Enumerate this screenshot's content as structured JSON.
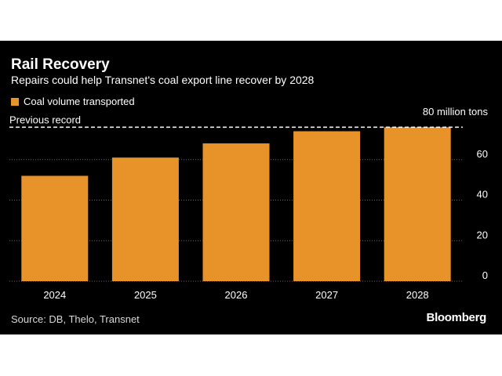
{
  "title": "Rail Recovery",
  "subtitle": "Repairs could help Transnet's coal export line recover by 2028",
  "source": "Source: DB, Thelo, Transnet",
  "brand": "Bloomberg",
  "colors": {
    "bar": "#E8922A",
    "background": "#000000",
    "text": "#ffffff",
    "grid": "#666666"
  },
  "chart_data": {
    "type": "bar",
    "categories": [
      "2024",
      "2025",
      "2026",
      "2027",
      "2028"
    ],
    "series": [
      {
        "name": "Coal volume transported",
        "values": [
          52,
          61,
          68,
          74,
          76
        ]
      }
    ],
    "ylim": [
      0,
      80
    ],
    "yticks": [
      0,
      20,
      40,
      60
    ],
    "top_label": "80 million tons",
    "reference_line": {
      "label": "Previous record",
      "value": 76
    },
    "grid": true,
    "y_axis_position": "right"
  }
}
